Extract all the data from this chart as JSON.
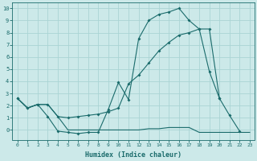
{
  "xlabel": "Humidex (Indice chaleur)",
  "x": [
    0,
    1,
    2,
    3,
    4,
    5,
    6,
    7,
    8,
    9,
    10,
    11,
    12,
    13,
    14,
    15,
    16,
    17,
    18,
    19,
    20,
    21,
    22,
    23
  ],
  "line1": [
    2.6,
    1.8,
    2.1,
    1.1,
    -0.1,
    -0.2,
    -0.3,
    -0.2,
    -0.2,
    1.7,
    3.9,
    2.5,
    7.5,
    9.0,
    9.5,
    9.7,
    10.0,
    9.0,
    8.3,
    4.8,
    2.6,
    1.2,
    -0.1,
    null
  ],
  "line2": [
    2.6,
    1.8,
    2.1,
    2.1,
    1.1,
    1.0,
    1.1,
    1.2,
    1.3,
    1.5,
    1.8,
    3.8,
    4.5,
    5.5,
    6.5,
    7.2,
    7.8,
    8.0,
    8.3,
    8.3,
    2.6,
    null,
    null,
    null
  ],
  "line3": [
    2.6,
    1.8,
    2.1,
    2.1,
    1.1,
    0.0,
    0.0,
    0.0,
    0.0,
    0.0,
    0.0,
    0.0,
    0.0,
    0.1,
    0.1,
    0.2,
    0.2,
    0.2,
    -0.2,
    -0.2,
    -0.2,
    -0.2,
    -0.2,
    -0.2
  ],
  "bg_color": "#cce9e9",
  "grid_color": "#aad4d4",
  "line_color": "#1a6b6b",
  "ylim": [
    -0.8,
    10.5
  ],
  "xlim": [
    -0.5,
    23.5
  ]
}
